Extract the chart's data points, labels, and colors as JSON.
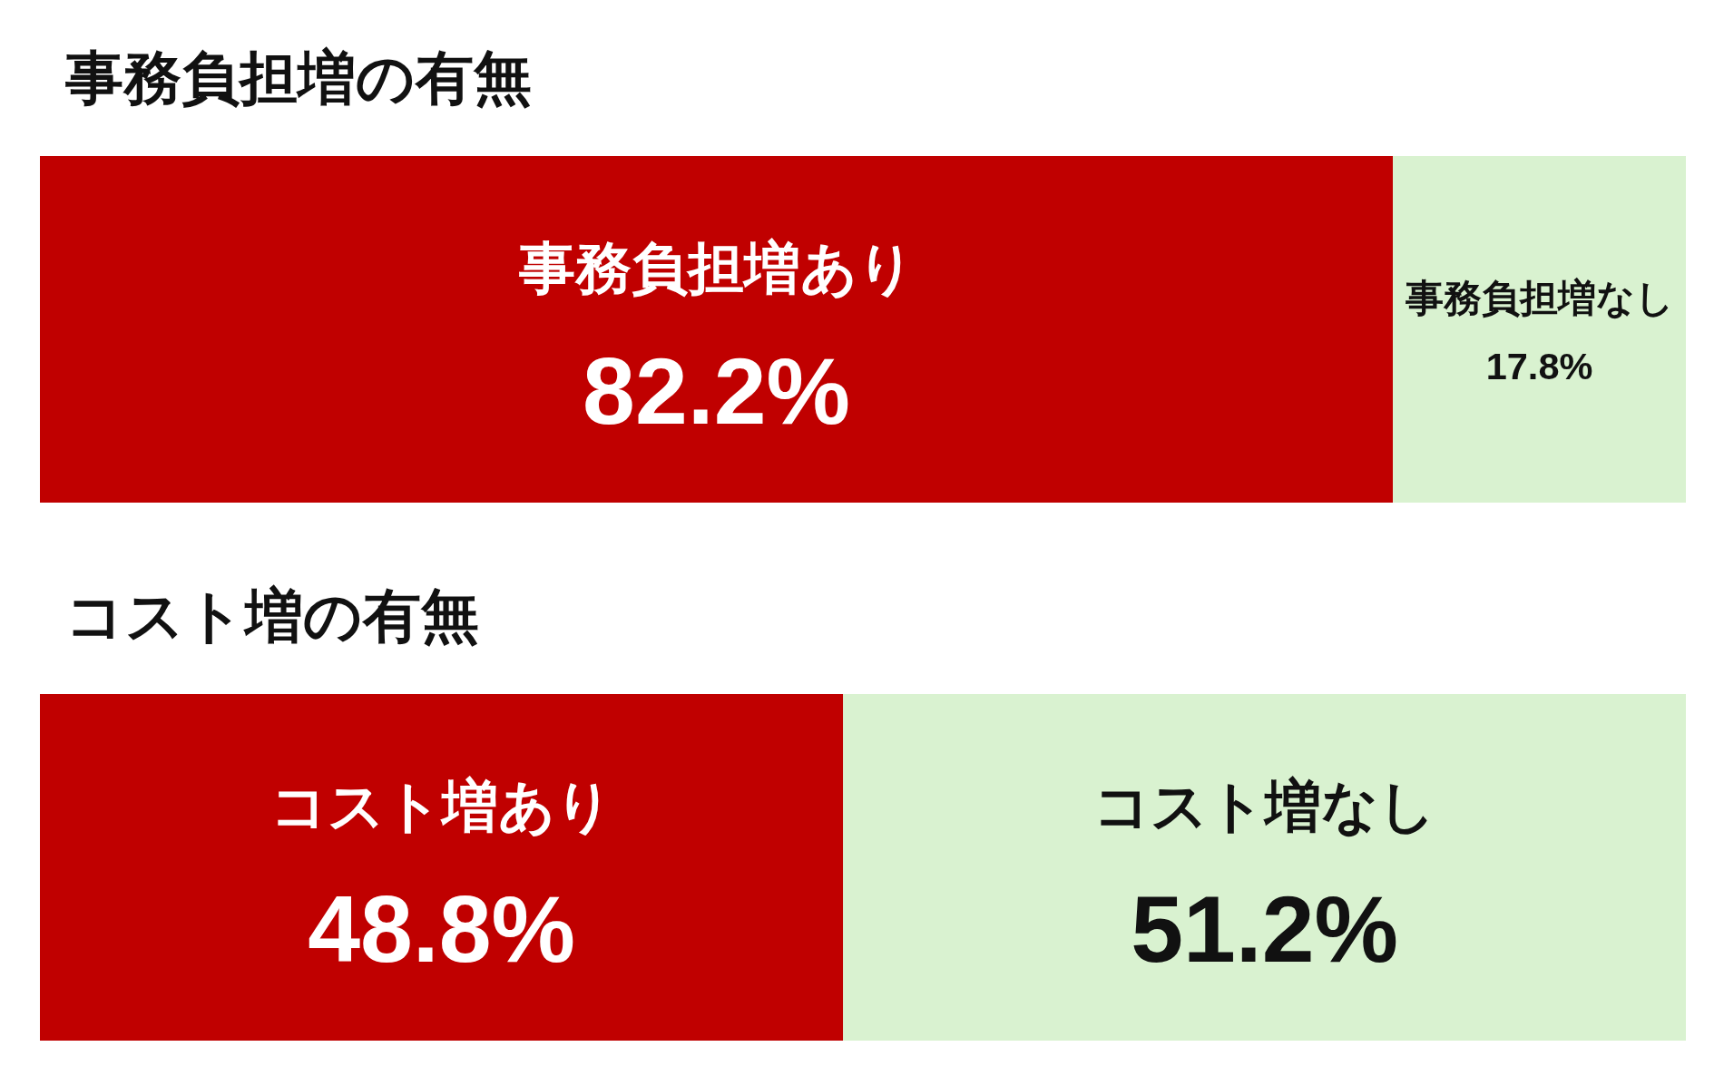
{
  "chart_data": [
    {
      "type": "bar",
      "title": "事務負担増の有無",
      "orientation": "horizontal",
      "stacked": true,
      "categories": [
        null
      ],
      "series": [
        {
          "name": "事務負担増あり",
          "color": "#c00000",
          "values": [
            82.2
          ],
          "value_labels": [
            "82.2%"
          ]
        },
        {
          "name": "事務負担増なし",
          "color": "#d9f2d0",
          "values": [
            17.8
          ],
          "value_labels": [
            "17.8%"
          ]
        }
      ]
    },
    {
      "type": "bar",
      "title": "コスト増の有無",
      "orientation": "horizontal",
      "stacked": true,
      "categories": [
        null
      ],
      "series": [
        {
          "name": "コスト増あり",
          "color": "#c00000",
          "values": [
            48.8
          ],
          "value_labels": [
            "48.8%"
          ]
        },
        {
          "name": "コスト増なし",
          "color": "#d9f2d0",
          "values": [
            51.2
          ],
          "value_labels": [
            "51.2%"
          ]
        }
      ]
    }
  ]
}
